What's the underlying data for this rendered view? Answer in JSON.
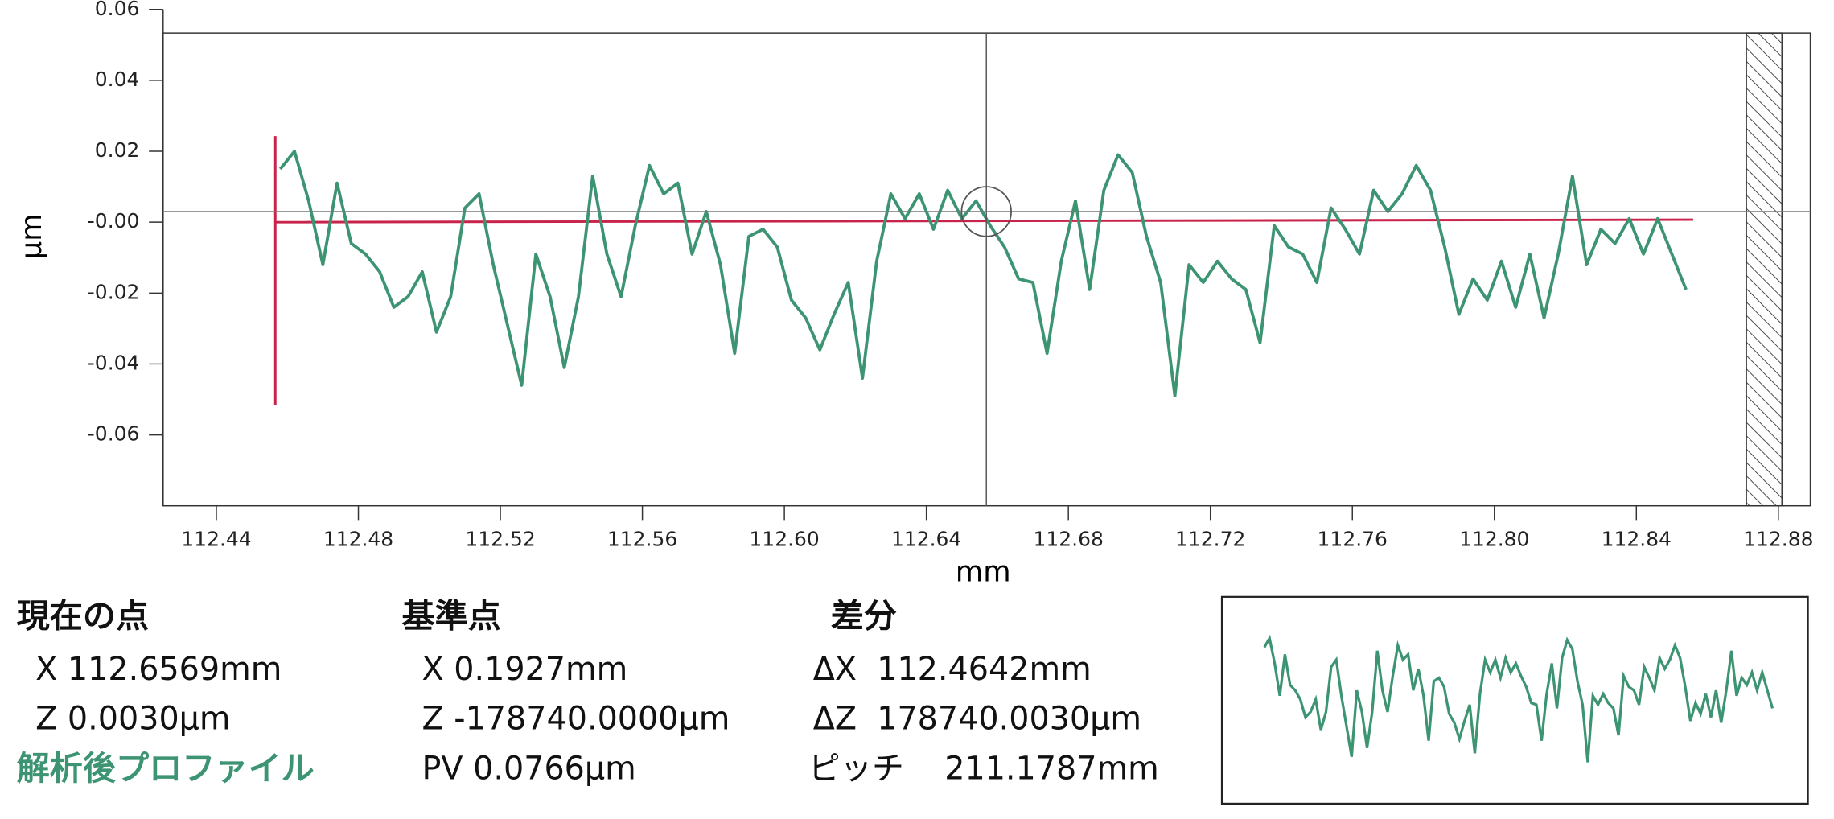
{
  "chart_data": {
    "type": "line",
    "xlabel": "mm",
    "ylabel": "µm",
    "xlim": [
      112.425,
      112.889
    ],
    "ylim": [
      -0.08,
      0.06
    ],
    "xticks": [
      112.44,
      112.48,
      112.52,
      112.56,
      {
        "value": 112.6,
        "label": "112.60"
      },
      112.64,
      112.68,
      112.72,
      112.76,
      {
        "value": 112.8,
        "label": "112.80"
      },
      112.84,
      112.88
    ],
    "yticks": [
      -0.06,
      -0.04,
      -0.02,
      {
        "value": 0,
        "label": "-0.00"
      },
      0.02,
      0.04,
      0.06
    ],
    "x": [
      112.458,
      112.462,
      112.466,
      112.47,
      112.474,
      112.478,
      112.482,
      112.486,
      112.49,
      112.494,
      112.498,
      112.502,
      112.506,
      112.51,
      112.514,
      112.518,
      112.522,
      112.526,
      112.53,
      112.534,
      112.538,
      112.542,
      112.546,
      112.55,
      112.554,
      112.558,
      112.562,
      112.566,
      112.57,
      112.574,
      112.578,
      112.582,
      112.586,
      112.59,
      112.594,
      112.598,
      112.602,
      112.606,
      112.61,
      112.614,
      112.618,
      112.622,
      112.626,
      112.63,
      112.634,
      112.638,
      112.642,
      112.646,
      112.65,
      112.654,
      112.658,
      112.662,
      112.666,
      112.67,
      112.674,
      112.678,
      112.682,
      112.686,
      112.69,
      112.694,
      112.698,
      112.702,
      112.706,
      112.71,
      112.714,
      112.718,
      112.722,
      112.726,
      112.73,
      112.734,
      112.738,
      112.742,
      112.746,
      112.75,
      112.754,
      112.758,
      112.762,
      112.766,
      112.77,
      112.774,
      112.778,
      112.782,
      112.786,
      112.79,
      112.794,
      112.798,
      112.802,
      112.806,
      112.81,
      112.814,
      112.818,
      112.822,
      112.826,
      112.83,
      112.834,
      112.838,
      112.842,
      112.846,
      112.85,
      112.854
    ],
    "series": [
      {
        "color": "#3d9473",
        "values": [
          0.015,
          0.02,
          0.006,
          -0.012,
          0.011,
          -0.006,
          -0.009,
          -0.014,
          -0.024,
          -0.021,
          -0.014,
          -0.031,
          -0.021,
          0.004,
          0.008,
          -0.012,
          -0.029,
          -0.046,
          -0.009,
          -0.021,
          -0.041,
          -0.021,
          0.013,
          -0.009,
          -0.021,
          -0.001,
          0.016,
          0.008,
          0.011,
          -0.009,
          0.003,
          -0.012,
          -0.037,
          -0.004,
          -0.002,
          -0.007,
          -0.022,
          -0.027,
          -0.036,
          -0.026,
          -0.017,
          -0.044,
          -0.011,
          0.008,
          0.001,
          0.008,
          -0.002,
          0.009,
          0.001,
          0.006,
          -0.001,
          -0.007,
          -0.016,
          -0.017,
          -0.037,
          -0.011,
          0.006,
          -0.019,
          0.009,
          0.019,
          0.014,
          -0.004,
          -0.017,
          -0.049,
          -0.012,
          -0.017,
          -0.011,
          -0.016,
          -0.019,
          -0.034,
          -0.001,
          -0.007,
          -0.009,
          -0.017,
          0.004,
          -0.002,
          -0.009,
          0.009,
          0.003,
          0.008,
          0.016,
          0.009,
          -0.007,
          -0.026,
          -0.016,
          -0.022,
          -0.011,
          -0.024,
          -0.009,
          -0.027,
          -0.009,
          0.013,
          -0.012,
          -0.002,
          -0.006,
          0.001,
          -0.009,
          0.001,
          -0.009,
          -0.019
        ]
      }
    ],
    "reference": {
      "color": "#c8234a",
      "x": [
        112.4566,
        112.4566,
        112.4566,
        112.856
      ],
      "values": [
        0.0243,
        -0.0517,
        0,
        0.0007
      ]
    },
    "cursor": {
      "x": 112.6569,
      "y": 0.003
    },
    "excluded": [
      112.871,
      112.881
    ]
  },
  "panel": {
    "current": {
      "heading": "現在の点",
      "x": "X 112.6569mm",
      "z": "Z 0.0030µm",
      "label": "解析後プロファイル"
    },
    "base": {
      "heading": "基準点",
      "x": "X 0.1927mm",
      "z": "Z -178740.0000µm",
      "pv": "PV 0.0766µm"
    },
    "diff": {
      "heading": "差分",
      "dx": "ΔX  112.4642mm",
      "dz": "ΔZ  178740.0030µm",
      "pitch": "ピッチ    211.1787mm"
    }
  }
}
